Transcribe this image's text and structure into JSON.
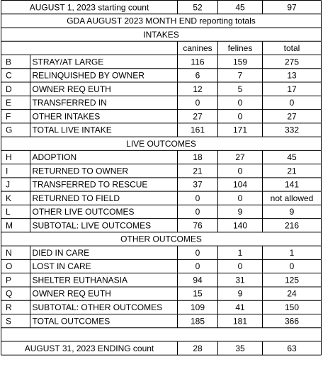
{
  "start": {
    "label": "AUGUST 1, 2023 starting count",
    "values": [
      52,
      45,
      97
    ]
  },
  "title": "GDA AUGUST 2023 MONTH END reporting totals",
  "columns": [
    "canines",
    "felines",
    "total"
  ],
  "sections": [
    {
      "heading": "INTAKES",
      "rows": [
        {
          "code": "B",
          "label": "STRAY/AT LARGE",
          "values": [
            116,
            159,
            275
          ]
        },
        {
          "code": "C",
          "label": "RELINQUISHED BY OWNER",
          "values": [
            6,
            7,
            13
          ]
        },
        {
          "code": "D",
          "label": "OWNER REQ EUTH",
          "values": [
            12,
            5,
            17
          ]
        },
        {
          "code": "E",
          "label": "TRANSFERRED IN",
          "values": [
            0,
            0,
            0
          ]
        },
        {
          "code": "F",
          "label": "OTHER INTAKES",
          "values": [
            27,
            0,
            27
          ]
        },
        {
          "code": "G",
          "label": "TOTAL LIVE INTAKE",
          "values": [
            161,
            171,
            332
          ]
        }
      ]
    },
    {
      "heading": "LIVE OUTCOMES",
      "rows": [
        {
          "code": "H",
          "label": "ADOPTION",
          "values": [
            18,
            27,
            45
          ]
        },
        {
          "code": "I",
          "label": "RETURNED TO OWNER",
          "values": [
            21,
            0,
            21
          ]
        },
        {
          "code": "J",
          "label": "TRANSFERRED TO RESCUE",
          "values": [
            37,
            104,
            141
          ]
        },
        {
          "code": "K",
          "label": "RETURNED TO FIELD",
          "values": [
            0,
            0,
            "not allowed"
          ]
        },
        {
          "code": "L",
          "label": "OTHER LIVE OUTCOMES",
          "values": [
            0,
            9,
            9
          ]
        },
        {
          "code": "M",
          "label": "SUBTOTAL: LIVE OUTCOMES",
          "values": [
            76,
            140,
            216
          ]
        }
      ]
    },
    {
      "heading": "OTHER OUTCOMES",
      "rows": [
        {
          "code": "N",
          "label": "DIED IN CARE",
          "values": [
            0,
            1,
            1
          ]
        },
        {
          "code": "O",
          "label": "LOST IN CARE",
          "values": [
            0,
            0,
            0
          ]
        },
        {
          "code": "P",
          "label": "SHELTER EUTHANASIA",
          "values": [
            94,
            31,
            125
          ]
        },
        {
          "code": "Q",
          "label": "OWNER REQ EUTH",
          "values": [
            15,
            9,
            24
          ]
        },
        {
          "code": "R",
          "label": "SUBTOTAL: OTHER OUTCOMES",
          "values": [
            109,
            41,
            150
          ]
        },
        {
          "code": "S",
          "label": "TOTAL OUTCOMES",
          "values": [
            185,
            181,
            366
          ]
        }
      ]
    }
  ],
  "end": {
    "label": "AUGUST 31, 2023 ENDING count",
    "values": [
      28,
      35,
      63
    ]
  }
}
